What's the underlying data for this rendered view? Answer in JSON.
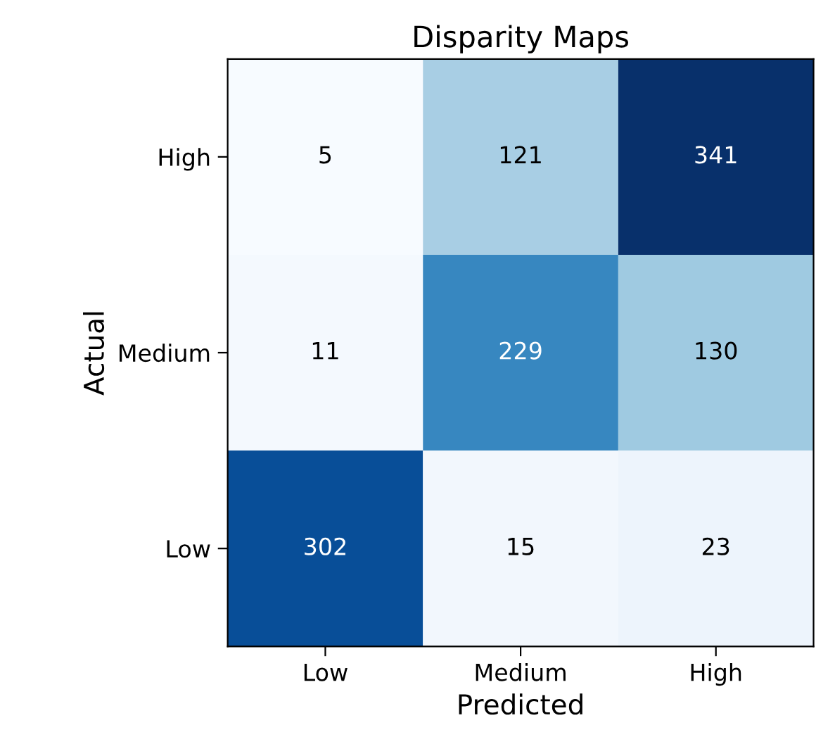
{
  "chart_data": {
    "type": "heatmap",
    "title": "Disparity Maps",
    "xlabel": "Predicted",
    "ylabel": "Actual",
    "categories": [
      "Low",
      "Medium",
      "High"
    ],
    "y_categories": [
      "High",
      "Medium",
      "Low"
    ],
    "cells": [
      [
        5,
        121,
        341
      ],
      [
        11,
        229,
        130
      ],
      [
        302,
        15,
        23
      ]
    ],
    "data_labels": true
  }
}
